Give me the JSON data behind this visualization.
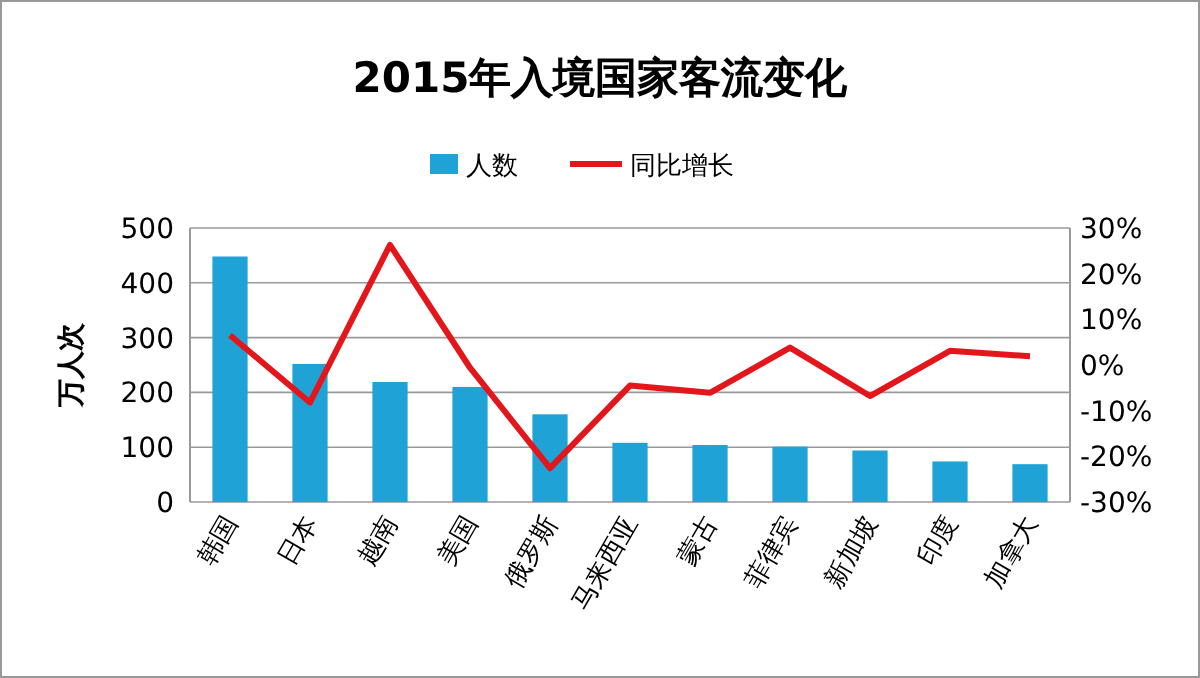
{
  "chart_data": {
    "type": "bar",
    "title": "2015年入境国家客流变化",
    "ylabel": "万人次",
    "categories": [
      "韩国",
      "日本",
      "越南",
      "美国",
      "俄罗斯",
      "马来西亚",
      "蒙古",
      "菲律宾",
      "新加坡",
      "印度",
      "加拿大"
    ],
    "series": [
      {
        "name": "人数",
        "color": "#1fa2d6",
        "values": [
          448,
          252,
          219,
          210,
          160,
          108,
          104,
          101,
          94,
          74,
          69
        ]
      },
      {
        "name": "同比增长",
        "type": "line",
        "axis": "y2",
        "color": "#e3161b",
        "values": [
          6.5,
          -8.2,
          26.3,
          -0.6,
          -22.6,
          -4.5,
          -6.1,
          3.8,
          -6.8,
          3.1,
          1.9
        ]
      }
    ],
    "ylim": [
      0,
      500
    ],
    "yticks": [
      0,
      100,
      200,
      300,
      400,
      500
    ],
    "y2lim": [
      -30,
      30
    ],
    "y2ticks": [
      {
        "value": -30,
        "label": "-30%"
      },
      {
        "value": -20,
        "label": "-20%"
      },
      {
        "value": -10,
        "label": "-10%"
      },
      {
        "value": 0,
        "label": "0%"
      },
      {
        "value": 10,
        "label": "10%"
      },
      {
        "value": 20,
        "label": "20%"
      },
      {
        "value": 30,
        "label": "30%"
      }
    ],
    "grid": "y",
    "legend": "top",
    "marker": "none",
    "line_style": "solid"
  }
}
